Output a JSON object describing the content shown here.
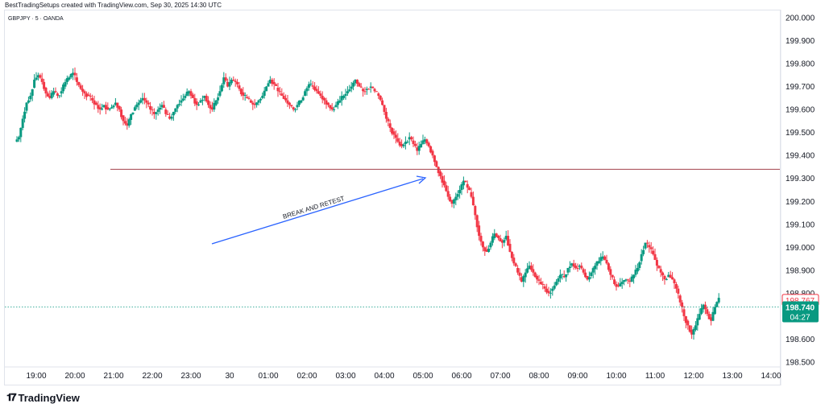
{
  "header": {
    "caption": "BestTradingSetups created with TradingView.com, Sep 30, 2025 14:30 UTC",
    "symbol_line": "GBPJPY · 5 · OANDA"
  },
  "footer": {
    "logo_text": "TradingView",
    "logo_icon": "tradingview-logo-icon"
  },
  "colors": {
    "up": "#089981",
    "down": "#f23645",
    "resistance_line": "#a3424c",
    "arrow": "#2962ff",
    "price_dotted": "#089981",
    "price_tag": "#089981",
    "level_tag_border": "#f23645"
  },
  "annotations": {
    "arrow_label": "BREAK AND RETEST",
    "horizontal_level": 199.34
  },
  "price_tags": {
    "level_value": "198.767",
    "current_value": "198.740",
    "countdown": "04:27"
  },
  "chart_data": {
    "type": "candlestick",
    "ylim": [
      198.5,
      200.0
    ],
    "y_ticks": [
      "200.000",
      "199.900",
      "199.800",
      "199.700",
      "199.600",
      "199.500",
      "199.400",
      "199.300",
      "199.200",
      "199.100",
      "199.000",
      "198.900",
      "198.800",
      "198.700",
      "198.600",
      "198.500"
    ],
    "x_ticks": [
      "19:00",
      "20:00",
      "21:00",
      "22:00",
      "23:00",
      "30",
      "01:00",
      "02:00",
      "03:00",
      "04:00",
      "05:00",
      "06:00",
      "07:00",
      "08:00",
      "09:00",
      "10:00",
      "11:00",
      "12:00",
      "13:00",
      "14:00"
    ],
    "trend_points": [
      [
        18.5,
        199.48
      ],
      [
        18.6,
        199.56
      ],
      [
        18.7,
        199.63
      ],
      [
        18.8,
        199.66
      ],
      [
        18.9,
        199.73
      ],
      [
        19.0,
        199.75
      ],
      [
        19.1,
        199.72
      ],
      [
        19.2,
        199.67
      ],
      [
        19.3,
        199.65
      ],
      [
        19.4,
        199.68
      ],
      [
        19.5,
        199.66
      ],
      [
        19.6,
        199.68
      ],
      [
        19.7,
        199.72
      ],
      [
        19.8,
        199.74
      ],
      [
        19.9,
        199.76
      ],
      [
        20.0,
        199.72
      ],
      [
        20.1,
        199.69
      ],
      [
        20.2,
        199.67
      ],
      [
        20.3,
        199.66
      ],
      [
        20.4,
        199.64
      ],
      [
        20.5,
        199.62
      ],
      [
        20.6,
        199.6
      ],
      [
        20.7,
        199.62
      ],
      [
        20.8,
        199.6
      ],
      [
        20.9,
        199.61
      ],
      [
        21.0,
        199.63
      ],
      [
        21.1,
        199.6
      ],
      [
        21.2,
        199.55
      ],
      [
        21.3,
        199.53
      ],
      [
        21.4,
        199.58
      ],
      [
        21.5,
        199.61
      ],
      [
        21.6,
        199.63
      ],
      [
        21.7,
        199.65
      ],
      [
        21.8,
        199.63
      ],
      [
        21.9,
        199.6
      ],
      [
        22.0,
        199.58
      ],
      [
        22.1,
        199.6
      ],
      [
        22.2,
        199.62
      ],
      [
        22.3,
        199.58
      ],
      [
        22.4,
        199.56
      ],
      [
        22.5,
        199.59
      ],
      [
        22.6,
        199.62
      ],
      [
        22.7,
        199.64
      ],
      [
        22.8,
        199.66
      ],
      [
        22.9,
        199.68
      ],
      [
        23.0,
        199.65
      ],
      [
        23.1,
        199.62
      ],
      [
        23.2,
        199.64
      ],
      [
        23.3,
        199.66
      ],
      [
        23.4,
        199.62
      ],
      [
        23.5,
        199.6
      ],
      [
        23.6,
        199.64
      ],
      [
        23.7,
        199.68
      ],
      [
        23.8,
        199.74
      ],
      [
        23.9,
        199.7
      ],
      [
        24.0,
        199.73
      ],
      [
        24.1,
        199.72
      ],
      [
        24.2,
        199.69
      ],
      [
        24.3,
        199.66
      ],
      [
        24.4,
        199.65
      ],
      [
        24.5,
        199.63
      ],
      [
        24.6,
        199.62
      ],
      [
        24.7,
        199.64
      ],
      [
        24.8,
        199.66
      ],
      [
        24.9,
        199.7
      ],
      [
        25.0,
        199.73
      ],
      [
        25.1,
        199.71
      ],
      [
        25.2,
        199.68
      ],
      [
        25.3,
        199.66
      ],
      [
        25.4,
        199.64
      ],
      [
        25.5,
        199.62
      ],
      [
        25.6,
        199.6
      ],
      [
        25.7,
        199.62
      ],
      [
        25.8,
        199.64
      ],
      [
        25.9,
        199.68
      ],
      [
        26.0,
        199.71
      ],
      [
        26.1,
        199.7
      ],
      [
        26.2,
        199.68
      ],
      [
        26.3,
        199.66
      ],
      [
        26.4,
        199.64
      ],
      [
        26.5,
        199.62
      ],
      [
        26.6,
        199.6
      ],
      [
        26.7,
        199.62
      ],
      [
        26.8,
        199.64
      ],
      [
        26.9,
        199.66
      ],
      [
        27.0,
        199.68
      ],
      [
        27.1,
        199.7
      ],
      [
        27.2,
        199.73
      ],
      [
        27.3,
        199.7
      ],
      [
        27.4,
        199.68
      ],
      [
        27.5,
        199.69
      ],
      [
        27.6,
        199.7
      ],
      [
        27.7,
        199.68
      ],
      [
        27.8,
        199.66
      ],
      [
        27.9,
        199.62
      ],
      [
        28.0,
        199.56
      ],
      [
        28.1,
        199.52
      ],
      [
        28.2,
        199.49
      ],
      [
        28.3,
        199.46
      ],
      [
        28.4,
        199.44
      ],
      [
        28.5,
        199.46
      ],
      [
        28.6,
        199.48
      ],
      [
        28.7,
        199.45
      ],
      [
        28.8,
        199.42
      ],
      [
        28.9,
        199.45
      ],
      [
        29.0,
        199.47
      ],
      [
        29.1,
        199.44
      ],
      [
        29.2,
        199.4
      ],
      [
        29.3,
        199.35
      ],
      [
        29.4,
        199.31
      ],
      [
        29.5,
        199.27
      ],
      [
        29.6,
        199.22
      ],
      [
        29.7,
        199.19
      ],
      [
        29.8,
        199.22
      ],
      [
        29.9,
        199.25
      ],
      [
        30.0,
        199.29
      ],
      [
        30.1,
        199.26
      ],
      [
        30.2,
        199.22
      ],
      [
        30.3,
        199.14
      ],
      [
        30.4,
        199.05
      ],
      [
        30.5,
        199.0
      ],
      [
        30.6,
        198.98
      ],
      [
        30.7,
        199.02
      ],
      [
        30.8,
        199.06
      ],
      [
        30.9,
        199.04
      ],
      [
        31.0,
        199.02
      ],
      [
        31.1,
        199.05
      ],
      [
        31.2,
        198.98
      ],
      [
        31.3,
        198.93
      ],
      [
        31.4,
        198.89
      ],
      [
        31.5,
        198.85
      ],
      [
        31.6,
        198.89
      ],
      [
        31.7,
        198.92
      ],
      [
        31.8,
        198.89
      ],
      [
        31.9,
        198.86
      ],
      [
        32.0,
        198.84
      ],
      [
        32.1,
        198.82
      ],
      [
        32.2,
        198.8
      ],
      [
        32.3,
        198.82
      ],
      [
        32.4,
        198.85
      ],
      [
        32.5,
        198.88
      ],
      [
        32.6,
        198.87
      ],
      [
        32.7,
        198.91
      ],
      [
        32.8,
        198.93
      ],
      [
        32.9,
        198.91
      ],
      [
        33.0,
        198.92
      ],
      [
        33.1,
        198.89
      ],
      [
        33.2,
        198.86
      ],
      [
        33.3,
        198.89
      ],
      [
        33.4,
        198.92
      ],
      [
        33.5,
        198.94
      ],
      [
        33.6,
        198.96
      ],
      [
        33.7,
        198.93
      ],
      [
        33.8,
        198.88
      ],
      [
        33.9,
        198.84
      ],
      [
        34.0,
        198.83
      ],
      [
        34.1,
        198.85
      ],
      [
        34.2,
        198.86
      ],
      [
        34.3,
        198.85
      ],
      [
        34.4,
        198.88
      ],
      [
        34.5,
        198.91
      ],
      [
        34.6,
        198.97
      ],
      [
        34.7,
        199.02
      ],
      [
        34.8,
        199.0
      ],
      [
        34.9,
        198.97
      ],
      [
        35.0,
        198.92
      ],
      [
        35.1,
        198.89
      ],
      [
        35.2,
        198.86
      ],
      [
        35.3,
        198.88
      ],
      [
        35.4,
        198.86
      ],
      [
        35.5,
        198.82
      ],
      [
        35.6,
        198.76
      ],
      [
        35.7,
        198.7
      ],
      [
        35.8,
        198.66
      ],
      [
        35.9,
        198.62
      ],
      [
        36.0,
        198.66
      ],
      [
        36.1,
        198.71
      ],
      [
        36.2,
        198.75
      ],
      [
        36.3,
        198.71
      ],
      [
        36.4,
        198.68
      ],
      [
        36.5,
        198.74
      ],
      [
        36.6,
        198.78
      ]
    ]
  }
}
